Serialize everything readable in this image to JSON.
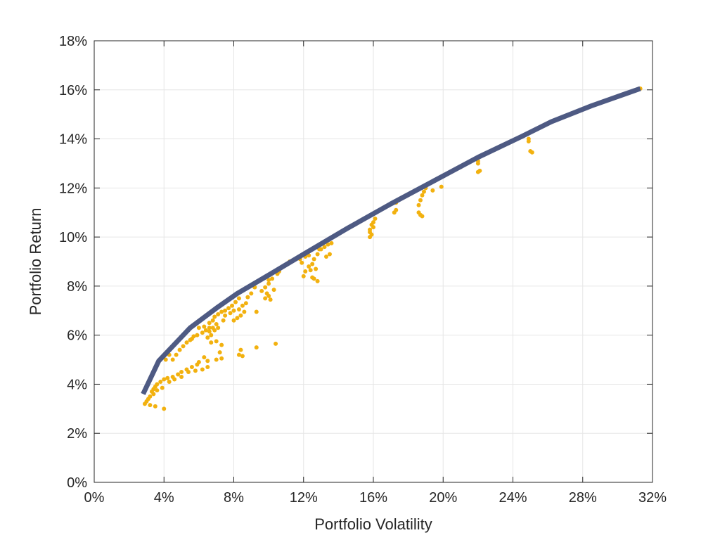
{
  "chart_data": {
    "type": "scatter",
    "title": "",
    "xlabel": "Portfolio Volatility",
    "ylabel": "Portfolio Return",
    "xlim": [
      0,
      32
    ],
    "ylim": [
      0,
      18
    ],
    "x_ticks": [
      0,
      4,
      8,
      12,
      16,
      20,
      24,
      28,
      32
    ],
    "y_ticks": [
      0,
      2,
      4,
      6,
      8,
      10,
      12,
      14,
      16,
      18
    ],
    "x_tick_labels": [
      "0%",
      "4%",
      "8%",
      "12%",
      "16%",
      "20%",
      "24%",
      "28%",
      "32%"
    ],
    "y_tick_labels": [
      "0%",
      "2%",
      "4%",
      "6%",
      "8%",
      "10%",
      "12%",
      "14%",
      "16%",
      "18%"
    ],
    "grid": true,
    "legend": "none",
    "colors": {
      "frontier": "#4e5a83",
      "points": "#f2b10f"
    },
    "frontier": {
      "x": [
        2.8,
        3.7,
        5.5,
        7.0,
        8.2,
        10.0,
        12.0,
        14.5,
        17.0,
        19.5,
        22.0,
        24.5,
        26.2,
        28.5,
        31.3
      ],
      "y": [
        3.6,
        4.95,
        6.3,
        7.1,
        7.7,
        8.45,
        9.3,
        10.35,
        11.35,
        12.3,
        13.25,
        14.1,
        14.7,
        15.35,
        16.05
      ]
    },
    "points": [
      [
        2.9,
        3.2
      ],
      [
        3.0,
        3.3
      ],
      [
        3.1,
        3.4
      ],
      [
        3.2,
        3.5
      ],
      [
        3.3,
        3.7
      ],
      [
        3.4,
        3.8
      ],
      [
        3.5,
        3.9
      ],
      [
        3.2,
        3.15
      ],
      [
        3.5,
        3.1
      ],
      [
        4.0,
        3.0
      ],
      [
        3.6,
        4.0
      ],
      [
        3.8,
        4.1
      ],
      [
        4.0,
        4.2
      ],
      [
        4.2,
        4.25
      ],
      [
        4.5,
        4.3
      ],
      [
        4.8,
        4.4
      ],
      [
        5.0,
        4.5
      ],
      [
        5.3,
        4.6
      ],
      [
        5.6,
        4.7
      ],
      [
        5.9,
        4.8
      ],
      [
        3.4,
        3.6
      ],
      [
        3.6,
        3.75
      ],
      [
        3.9,
        3.85
      ],
      [
        4.3,
        4.1
      ],
      [
        4.6,
        4.2
      ],
      [
        5.0,
        4.3
      ],
      [
        5.4,
        4.5
      ],
      [
        5.8,
        4.55
      ],
      [
        6.2,
        4.6
      ],
      [
        6.5,
        4.7
      ],
      [
        4.5,
        5.0
      ],
      [
        4.7,
        5.2
      ],
      [
        4.9,
        5.4
      ],
      [
        5.1,
        5.55
      ],
      [
        5.3,
        5.7
      ],
      [
        5.6,
        5.85
      ],
      [
        5.9,
        6.0
      ],
      [
        6.2,
        6.1
      ],
      [
        6.4,
        6.2
      ],
      [
        6.6,
        6.3
      ],
      [
        6.6,
        6.5
      ],
      [
        6.8,
        6.6
      ],
      [
        6.9,
        6.75
      ],
      [
        7.1,
        6.85
      ],
      [
        7.3,
        6.95
      ],
      [
        7.5,
        7.0
      ],
      [
        7.7,
        7.1
      ],
      [
        7.9,
        7.2
      ],
      [
        8.1,
        7.35
      ],
      [
        8.3,
        7.5
      ],
      [
        6.5,
        5.9
      ],
      [
        6.7,
        6.0
      ],
      [
        6.9,
        6.2
      ],
      [
        6.6,
        6.15
      ],
      [
        6.8,
        6.3
      ],
      [
        7.0,
        6.45
      ],
      [
        6.7,
        5.7
      ],
      [
        7.0,
        5.75
      ],
      [
        7.3,
        5.6
      ],
      [
        7.2,
        5.3
      ],
      [
        6.3,
        5.1
      ],
      [
        6.5,
        4.95
      ],
      [
        6.0,
        4.9
      ],
      [
        7.0,
        5.0
      ],
      [
        7.3,
        5.05
      ],
      [
        8.3,
        5.2
      ],
      [
        8.4,
        5.4
      ],
      [
        8.5,
        5.15
      ],
      [
        9.3,
        5.5
      ],
      [
        10.4,
        5.65
      ],
      [
        7.4,
        6.6
      ],
      [
        7.5,
        6.8
      ],
      [
        7.8,
        6.9
      ],
      [
        8.0,
        7.0
      ],
      [
        8.3,
        7.05
      ],
      [
        8.5,
        7.2
      ],
      [
        8.7,
        7.3
      ],
      [
        8.8,
        7.55
      ],
      [
        9.0,
        7.7
      ],
      [
        9.2,
        7.95
      ],
      [
        8.2,
        6.7
      ],
      [
        8.4,
        6.8
      ],
      [
        8.6,
        6.95
      ],
      [
        9.3,
        6.95
      ],
      [
        8.0,
        6.6
      ],
      [
        9.6,
        7.8
      ],
      [
        9.8,
        7.95
      ],
      [
        10.0,
        8.1
      ],
      [
        10.2,
        8.3
      ],
      [
        10.5,
        8.5
      ],
      [
        9.8,
        7.5
      ],
      [
        10.0,
        7.6
      ],
      [
        10.1,
        7.45
      ],
      [
        9.9,
        7.7
      ],
      [
        10.3,
        7.85
      ],
      [
        10.0,
        8.25
      ],
      [
        10.6,
        8.6
      ],
      [
        11.2,
        9.0
      ],
      [
        11.8,
        9.1
      ],
      [
        12.1,
        9.2
      ],
      [
        12.0,
        8.4
      ],
      [
        12.1,
        8.6
      ],
      [
        12.3,
        8.8
      ],
      [
        12.5,
        8.9
      ],
      [
        12.6,
        9.1
      ],
      [
        12.8,
        9.3
      ],
      [
        13.0,
        9.5
      ],
      [
        13.2,
        9.6
      ],
      [
        13.4,
        9.7
      ],
      [
        13.6,
        9.75
      ],
      [
        12.6,
        8.3
      ],
      [
        12.8,
        8.2
      ],
      [
        12.5,
        8.35
      ],
      [
        12.4,
        8.65
      ],
      [
        12.7,
        8.7
      ],
      [
        13.3,
        9.2
      ],
      [
        13.5,
        9.3
      ],
      [
        12.3,
        9.25
      ],
      [
        12.9,
        9.5
      ],
      [
        11.9,
        8.95
      ],
      [
        15.8,
        10.0
      ],
      [
        15.9,
        10.1
      ],
      [
        15.8,
        10.3
      ],
      [
        15.9,
        10.5
      ],
      [
        16.0,
        10.6
      ],
      [
        16.1,
        10.75
      ],
      [
        15.9,
        10.9
      ],
      [
        16.0,
        10.4
      ],
      [
        16.1,
        11.0
      ],
      [
        15.8,
        10.2
      ],
      [
        17.2,
        11.0
      ],
      [
        17.3,
        11.1
      ],
      [
        17.3,
        11.4
      ],
      [
        18.6,
        11.0
      ],
      [
        18.7,
        10.9
      ],
      [
        18.8,
        10.85
      ],
      [
        18.6,
        11.3
      ],
      [
        18.7,
        11.5
      ],
      [
        18.8,
        11.7
      ],
      [
        18.9,
        11.85
      ],
      [
        19.0,
        12.0
      ],
      [
        19.4,
        11.9
      ],
      [
        19.9,
        12.05
      ],
      [
        21.0,
        12.85
      ],
      [
        22.0,
        13.0
      ],
      [
        22.0,
        13.1
      ],
      [
        22.1,
        12.7
      ],
      [
        22.0,
        12.65
      ],
      [
        25.0,
        13.5
      ],
      [
        24.9,
        13.9
      ],
      [
        25.1,
        13.45
      ],
      [
        24.9,
        14.0
      ],
      [
        31.3,
        16.05
      ],
      [
        4.1,
        5.0
      ],
      [
        4.3,
        5.2
      ],
      [
        5.5,
        5.8
      ],
      [
        5.7,
        5.95
      ],
      [
        6.0,
        6.3
      ],
      [
        6.3,
        6.35
      ],
      [
        7.1,
        6.3
      ]
    ]
  }
}
